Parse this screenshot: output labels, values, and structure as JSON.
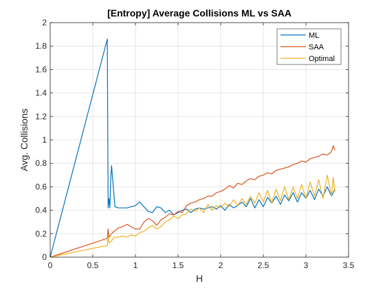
{
  "chart_data": {
    "type": "line",
    "title": "[Entropy] Average Collisions ML vs SAA",
    "xlabel": "H",
    "ylabel": "Avg. Collisions",
    "xlim": [
      0,
      3.5
    ],
    "ylim": [
      0,
      2
    ],
    "xticks": [
      0,
      0.5,
      1,
      1.5,
      2,
      2.5,
      3,
      3.5
    ],
    "yticks": [
      0,
      0.2,
      0.4,
      0.6,
      0.8,
      1,
      1.2,
      1.4,
      1.6,
      1.8,
      2
    ],
    "xtick_labels": [
      "0",
      "0.5",
      "1",
      "1.5",
      "2",
      "2.5",
      "3",
      "3.5"
    ],
    "ytick_labels": [
      "0",
      "0.2",
      "0.4",
      "0.6",
      "0.8",
      "1",
      "1.2",
      "1.4",
      "1.6",
      "1.8",
      "2"
    ],
    "grid": true,
    "legend_position": "top-right",
    "series": [
      {
        "name": "ML",
        "color": "#0072BD",
        "points": [
          [
            0,
            0
          ],
          [
            0.67,
            1.86
          ],
          [
            0.68,
            0.42
          ],
          [
            0.69,
            0.5
          ],
          [
            0.7,
            0.42
          ],
          [
            0.71,
            0.65
          ],
          [
            0.72,
            0.78
          ],
          [
            0.74,
            0.6
          ],
          [
            0.76,
            0.43
          ],
          [
            0.8,
            0.42
          ],
          [
            0.9,
            0.42
          ],
          [
            1.0,
            0.44
          ],
          [
            1.05,
            0.47
          ],
          [
            1.1,
            0.43
          ],
          [
            1.15,
            0.39
          ],
          [
            1.2,
            0.38
          ],
          [
            1.25,
            0.43
          ],
          [
            1.3,
            0.42
          ],
          [
            1.35,
            0.38
          ],
          [
            1.4,
            0.4
          ],
          [
            1.45,
            0.36
          ],
          [
            1.5,
            0.38
          ],
          [
            1.55,
            0.4
          ],
          [
            1.6,
            0.41
          ],
          [
            1.65,
            0.38
          ],
          [
            1.7,
            0.41
          ],
          [
            1.75,
            0.42
          ],
          [
            1.8,
            0.41
          ],
          [
            1.85,
            0.42
          ],
          [
            1.9,
            0.43
          ],
          [
            1.95,
            0.41
          ],
          [
            2.0,
            0.44
          ],
          [
            2.05,
            0.4
          ],
          [
            2.1,
            0.45
          ],
          [
            2.15,
            0.42
          ],
          [
            2.2,
            0.44
          ],
          [
            2.25,
            0.47
          ],
          [
            2.3,
            0.43
          ],
          [
            2.35,
            0.5
          ],
          [
            2.4,
            0.42
          ],
          [
            2.45,
            0.49
          ],
          [
            2.5,
            0.43
          ],
          [
            2.55,
            0.51
          ],
          [
            2.6,
            0.46
          ],
          [
            2.65,
            0.52
          ],
          [
            2.7,
            0.45
          ],
          [
            2.75,
            0.53
          ],
          [
            2.8,
            0.48
          ],
          [
            2.85,
            0.55
          ],
          [
            2.9,
            0.47
          ],
          [
            2.95,
            0.55
          ],
          [
            3.0,
            0.5
          ],
          [
            3.05,
            0.57
          ],
          [
            3.1,
            0.49
          ],
          [
            3.15,
            0.58
          ],
          [
            3.2,
            0.52
          ],
          [
            3.25,
            0.6
          ],
          [
            3.3,
            0.52
          ],
          [
            3.34,
            0.58
          ]
        ]
      },
      {
        "name": "SAA",
        "color": "#D95319",
        "points": [
          [
            0,
            0
          ],
          [
            0.67,
            0.16
          ],
          [
            0.68,
            0.24
          ],
          [
            0.69,
            0.17
          ],
          [
            0.72,
            0.2
          ],
          [
            0.75,
            0.22
          ],
          [
            0.8,
            0.25
          ],
          [
            0.85,
            0.26
          ],
          [
            0.9,
            0.28
          ],
          [
            0.95,
            0.26
          ],
          [
            1.0,
            0.24
          ],
          [
            1.05,
            0.24
          ],
          [
            1.1,
            0.3
          ],
          [
            1.15,
            0.33
          ],
          [
            1.2,
            0.31
          ],
          [
            1.25,
            0.27
          ],
          [
            1.3,
            0.32
          ],
          [
            1.35,
            0.34
          ],
          [
            1.4,
            0.37
          ],
          [
            1.45,
            0.36
          ],
          [
            1.5,
            0.39
          ],
          [
            1.55,
            0.38
          ],
          [
            1.6,
            0.44
          ],
          [
            1.65,
            0.46
          ],
          [
            1.7,
            0.47
          ],
          [
            1.75,
            0.49
          ],
          [
            1.8,
            0.5
          ],
          [
            1.85,
            0.52
          ],
          [
            1.9,
            0.52
          ],
          [
            1.95,
            0.55
          ],
          [
            2.0,
            0.56
          ],
          [
            2.05,
            0.58
          ],
          [
            2.1,
            0.61
          ],
          [
            2.15,
            0.59
          ],
          [
            2.2,
            0.63
          ],
          [
            2.25,
            0.62
          ],
          [
            2.3,
            0.65
          ],
          [
            2.35,
            0.67
          ],
          [
            2.4,
            0.66
          ],
          [
            2.45,
            0.69
          ],
          [
            2.5,
            0.7
          ],
          [
            2.55,
            0.72
          ],
          [
            2.6,
            0.71
          ],
          [
            2.65,
            0.74
          ],
          [
            2.7,
            0.75
          ],
          [
            2.75,
            0.76
          ],
          [
            2.8,
            0.77
          ],
          [
            2.85,
            0.79
          ],
          [
            2.9,
            0.8
          ],
          [
            2.95,
            0.82
          ],
          [
            3.0,
            0.81
          ],
          [
            3.05,
            0.84
          ],
          [
            3.1,
            0.85
          ],
          [
            3.15,
            0.86
          ],
          [
            3.2,
            0.88
          ],
          [
            3.25,
            0.87
          ],
          [
            3.3,
            0.9
          ],
          [
            3.32,
            0.95
          ],
          [
            3.34,
            0.91
          ]
        ]
      },
      {
        "name": "Optimal",
        "color": "#EDB120",
        "points": [
          [
            0,
            0
          ],
          [
            0.67,
            0.1
          ],
          [
            0.68,
            0.18
          ],
          [
            0.69,
            0.12
          ],
          [
            0.72,
            0.14
          ],
          [
            0.75,
            0.17
          ],
          [
            0.8,
            0.17
          ],
          [
            0.85,
            0.18
          ],
          [
            0.9,
            0.17
          ],
          [
            0.95,
            0.19
          ],
          [
            1.0,
            0.18
          ],
          [
            1.05,
            0.21
          ],
          [
            1.1,
            0.22
          ],
          [
            1.15,
            0.25
          ],
          [
            1.2,
            0.27
          ],
          [
            1.25,
            0.24
          ],
          [
            1.3,
            0.26
          ],
          [
            1.35,
            0.3
          ],
          [
            1.4,
            0.32
          ],
          [
            1.45,
            0.35
          ],
          [
            1.5,
            0.33
          ],
          [
            1.55,
            0.36
          ],
          [
            1.6,
            0.37
          ],
          [
            1.65,
            0.41
          ],
          [
            1.7,
            0.39
          ],
          [
            1.75,
            0.42
          ],
          [
            1.8,
            0.38
          ],
          [
            1.85,
            0.45
          ],
          [
            1.9,
            0.4
          ],
          [
            1.95,
            0.44
          ],
          [
            2.0,
            0.42
          ],
          [
            2.05,
            0.46
          ],
          [
            2.1,
            0.43
          ],
          [
            2.15,
            0.49
          ],
          [
            2.2,
            0.44
          ],
          [
            2.25,
            0.5
          ],
          [
            2.3,
            0.45
          ],
          [
            2.35,
            0.52
          ],
          [
            2.4,
            0.46
          ],
          [
            2.45,
            0.55
          ],
          [
            2.5,
            0.47
          ],
          [
            2.55,
            0.57
          ],
          [
            2.6,
            0.46
          ],
          [
            2.65,
            0.58
          ],
          [
            2.7,
            0.48
          ],
          [
            2.75,
            0.6
          ],
          [
            2.8,
            0.49
          ],
          [
            2.85,
            0.6
          ],
          [
            2.9,
            0.5
          ],
          [
            2.95,
            0.62
          ],
          [
            3.0,
            0.5
          ],
          [
            3.05,
            0.64
          ],
          [
            3.1,
            0.52
          ],
          [
            3.15,
            0.66
          ],
          [
            3.2,
            0.5
          ],
          [
            3.25,
            0.7
          ],
          [
            3.3,
            0.52
          ],
          [
            3.32,
            0.68
          ],
          [
            3.34,
            0.56
          ]
        ]
      }
    ]
  }
}
